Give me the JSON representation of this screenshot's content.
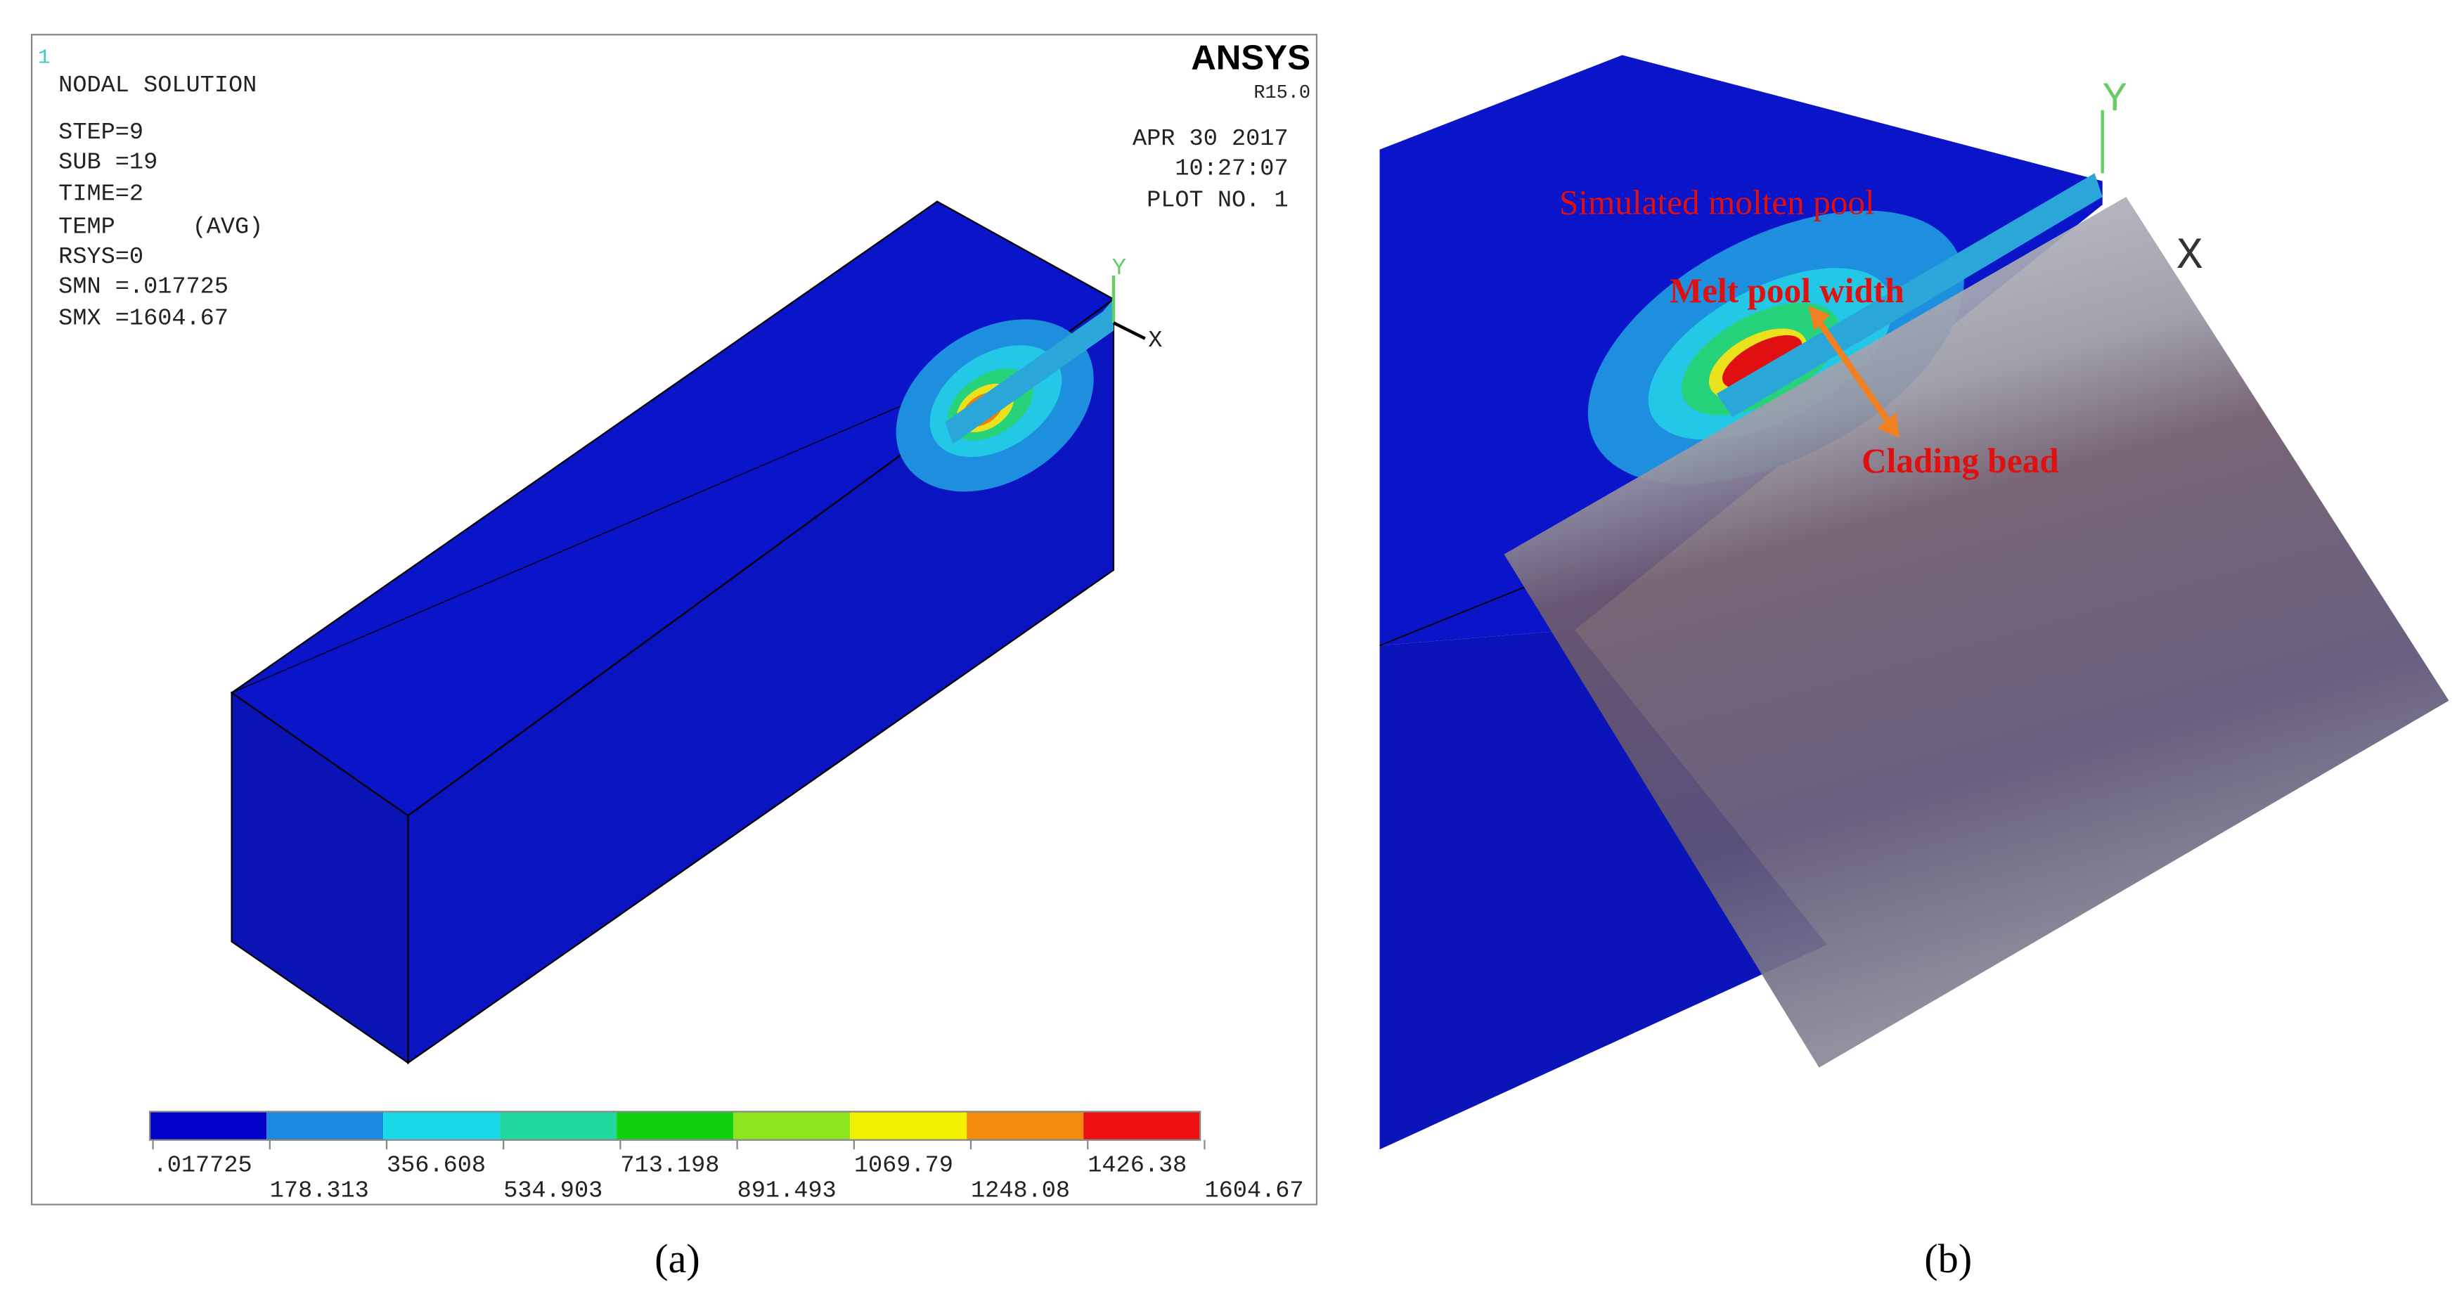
{
  "panel_a": {
    "window_number": "1",
    "header": [
      "NODAL SOLUTION",
      "STEP=9",
      "SUB =19",
      "TIME=2",
      "TEMP",
      "RSYS=0",
      "SMN =.017725",
      "SMX =1604.67"
    ],
    "avg": "(AVG)",
    "brand": "ANSYS",
    "version": "R15.0",
    "date": "APR 30 2017",
    "time": "10:27:07",
    "plot": "PLOT NO.   1",
    "axis_y": "Y",
    "axis_x": "X",
    "legend_labels": [
      ".017725",
      "178.313",
      "356.608",
      "534.903",
      "713.198",
      "891.493",
      "1069.79",
      "1248.08",
      "1426.38",
      "1604.67"
    ],
    "caption": "(a)"
  },
  "panel_b": {
    "labels": [
      "Simulated molten pool",
      "Melt pool width",
      "Clading bead"
    ],
    "axis_y": "Y",
    "axis_x": "X",
    "caption": "(b)"
  }
}
